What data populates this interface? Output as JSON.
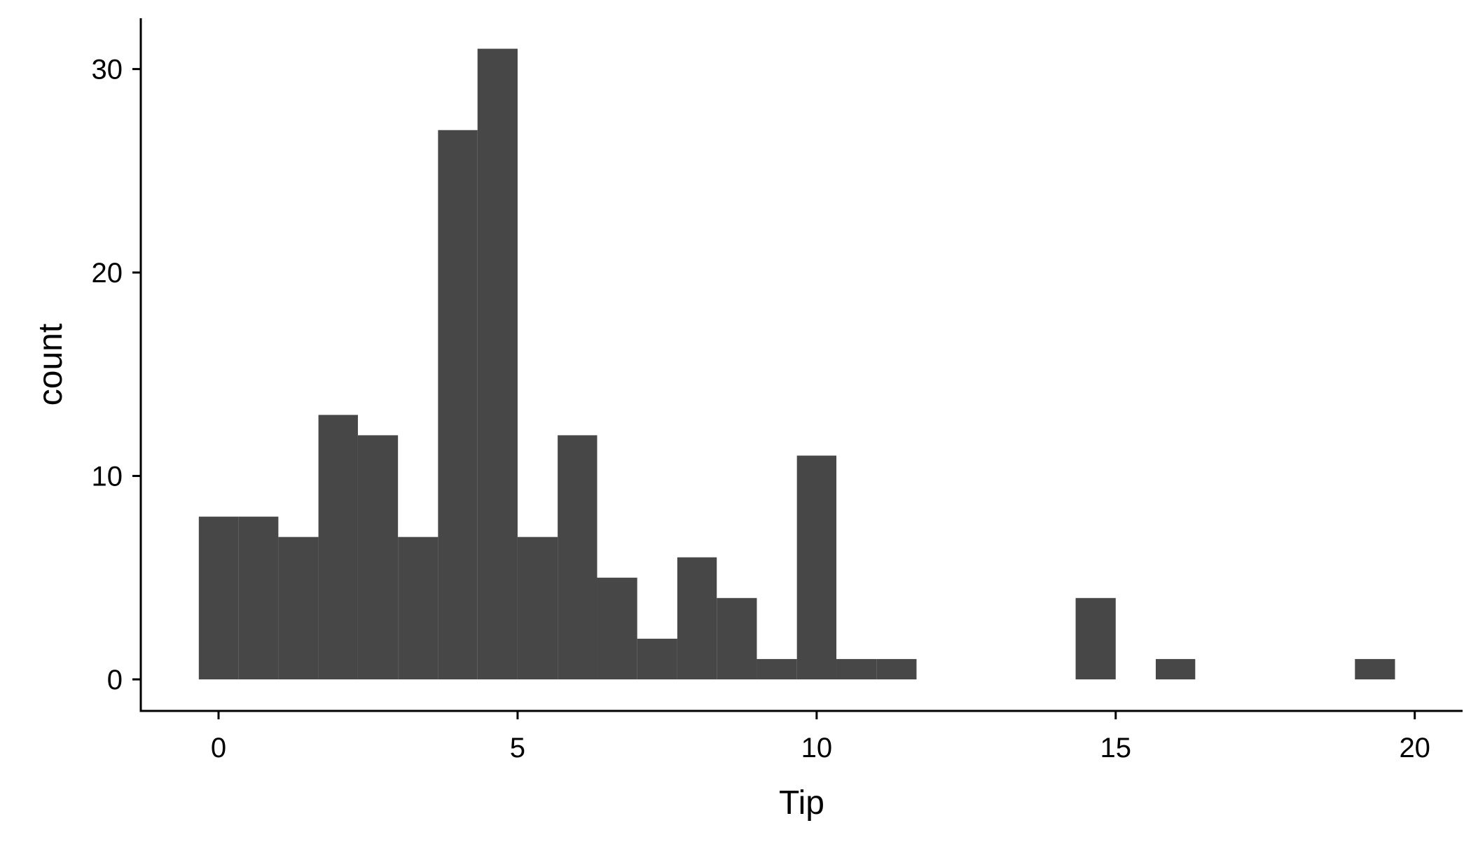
{
  "chart_data": {
    "type": "bar",
    "xlabel": "Tip",
    "ylabel": "count",
    "xlim": [
      -1.3,
      20.8
    ],
    "ylim": [
      -1.55,
      32.5
    ],
    "x_ticks": [
      "0",
      "5",
      "10",
      "15",
      "20"
    ],
    "y_ticks": [
      "0",
      "10",
      "20",
      "30"
    ],
    "bin_width": 0.67,
    "bins": [
      {
        "x0": -0.33,
        "x1": 0.33,
        "count": 8
      },
      {
        "x0": 0.33,
        "x1": 1.0,
        "count": 8
      },
      {
        "x0": 1.0,
        "x1": 1.67,
        "count": 7
      },
      {
        "x0": 1.67,
        "x1": 2.33,
        "count": 13
      },
      {
        "x0": 2.33,
        "x1": 3.0,
        "count": 12
      },
      {
        "x0": 3.0,
        "x1": 3.67,
        "count": 7
      },
      {
        "x0": 3.67,
        "x1": 4.33,
        "count": 27
      },
      {
        "x0": 4.33,
        "x1": 5.0,
        "count": 31
      },
      {
        "x0": 5.0,
        "x1": 5.67,
        "count": 7
      },
      {
        "x0": 5.67,
        "x1": 6.33,
        "count": 12
      },
      {
        "x0": 6.33,
        "x1": 7.0,
        "count": 5
      },
      {
        "x0": 7.0,
        "x1": 7.67,
        "count": 2
      },
      {
        "x0": 7.67,
        "x1": 8.33,
        "count": 6
      },
      {
        "x0": 8.33,
        "x1": 9.0,
        "count": 4
      },
      {
        "x0": 9.0,
        "x1": 9.67,
        "count": 1
      },
      {
        "x0": 9.67,
        "x1": 10.33,
        "count": 11
      },
      {
        "x0": 10.33,
        "x1": 11.0,
        "count": 1
      },
      {
        "x0": 11.0,
        "x1": 11.67,
        "count": 1
      },
      {
        "x0": 14.33,
        "x1": 15.0,
        "count": 4
      },
      {
        "x0": 15.67,
        "x1": 16.33,
        "count": 1
      },
      {
        "x0": 19.0,
        "x1": 19.67,
        "count": 1
      }
    ],
    "bar_color": "#474747",
    "grid": false,
    "legend": "none"
  }
}
